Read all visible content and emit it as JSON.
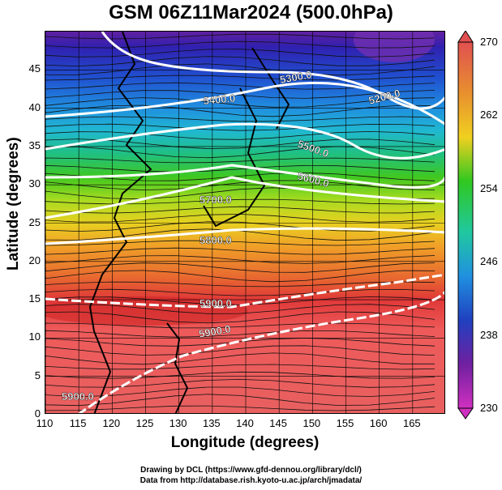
{
  "title": "GSM 06Z11Mar2024 (500.0hPa)",
  "axes": {
    "x_label": "Longitude (degrees)",
    "y_label": "Latitude  (degrees)",
    "x_ticks": [
      "110",
      "115",
      "120",
      "125",
      "130",
      "135",
      "140",
      "145",
      "150",
      "155",
      "160",
      "165"
    ],
    "y_ticks": [
      "0",
      "5",
      "10",
      "15",
      "20",
      "25",
      "30",
      "35",
      "40",
      "45"
    ]
  },
  "map": {
    "lon_range": [
      110,
      170
    ],
    "lat_range": [
      0,
      50
    ],
    "field": "temperature (shaded) with streamlines",
    "contour_labels": [
      "5200.0",
      "5300.0",
      "5400.0",
      "5500.0",
      "5600.0",
      "5700.0",
      "5800.0",
      "5900.0",
      "5900.0",
      "5900.0"
    ]
  },
  "colorbar": {
    "labels": [
      "270",
      "262",
      "254",
      "246",
      "238",
      "230"
    ],
    "colors": [
      "#e05050",
      "#e8902e",
      "#f0d020",
      "#30c820",
      "#20c8a0",
      "#2090e0",
      "#2040c0",
      "#7020a0",
      "#d030c0"
    ]
  },
  "credits": {
    "line1": "Drawing by DCL (https://www.gfd-dennou.org/library/dcl/)",
    "line2": "Data from http://database.rish.kyoto-u.ac.jp/arch/jmadata/"
  }
}
